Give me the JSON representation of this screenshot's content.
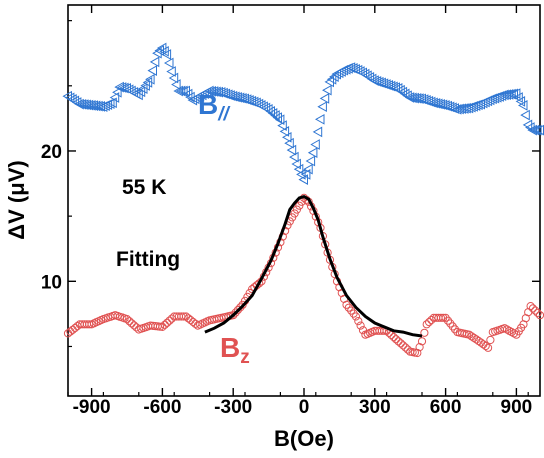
{
  "chart_data": {
    "type": "scatter",
    "xlabel": "B(Oe)",
    "ylabel": "ΔV (μV)",
    "xlim": [
      -1000,
      1000
    ],
    "ylim": [
      1.2,
      31.2
    ],
    "x_ticks": [
      -900,
      -600,
      -300,
      0,
      300,
      600,
      900
    ],
    "y_ticks": [
      10,
      20
    ],
    "grid": false,
    "annotations": [
      "55 K",
      "Fitting"
    ],
    "series": [
      {
        "name": "B//",
        "label_main": "B",
        "label_sub": "//",
        "marker": "triangle-left-open",
        "color": "#2f76d2",
        "x": [
          -1000,
          -950,
          -900,
          -850,
          -810,
          -780,
          -750,
          -700,
          -650,
          -620,
          -600,
          -580,
          -560,
          -530,
          -500,
          -470,
          -440,
          -400,
          -350,
          -300,
          -250,
          -200,
          -150,
          -100,
          -60,
          -30,
          0,
          20,
          50,
          80,
          110,
          140,
          170,
          200,
          230,
          260,
          300,
          350,
          400,
          450,
          500,
          550,
          600,
          650,
          700,
          750,
          800,
          850,
          900,
          930,
          950,
          970,
          1000
        ],
        "y": [
          24.2,
          23.6,
          23.5,
          23.4,
          23.7,
          24.9,
          24.8,
          24.3,
          25.5,
          27.5,
          27.9,
          27.4,
          26.1,
          24.6,
          24.6,
          23.9,
          24.2,
          24.6,
          24.5,
          24.2,
          24.0,
          23.7,
          23.2,
          22.4,
          20.6,
          19.0,
          17.8,
          18.6,
          20.5,
          23.4,
          25.3,
          25.9,
          26.2,
          26.4,
          26.2,
          25.9,
          25.4,
          25.1,
          24.8,
          24.1,
          24.0,
          23.7,
          23.5,
          23.2,
          23.3,
          23.6,
          24.0,
          24.3,
          24.4,
          23.5,
          22.0,
          21.6,
          21.6
        ]
      },
      {
        "name": "Bz",
        "label_main": "B",
        "label_sub": "z",
        "marker": "circle-open",
        "color": "#e05252",
        "x": [
          -1000,
          -950,
          -900,
          -850,
          -800,
          -750,
          -700,
          -650,
          -600,
          -550,
          -500,
          -450,
          -400,
          -350,
          -300,
          -260,
          -220,
          -180,
          -140,
          -100,
          -70,
          -40,
          -20,
          0,
          20,
          40,
          70,
          100,
          140,
          180,
          220,
          260,
          300,
          350,
          400,
          450,
          480,
          500,
          520,
          550,
          600,
          650,
          700,
          750,
          780,
          800,
          850,
          900,
          930,
          960,
          1000
        ],
        "y": [
          6.0,
          6.7,
          6.7,
          7.1,
          7.4,
          7.1,
          6.3,
          6.6,
          6.5,
          7.3,
          7.3,
          6.6,
          7.0,
          7.2,
          7.4,
          8.2,
          9.4,
          10.0,
          11.4,
          13.0,
          14.3,
          15.2,
          15.8,
          16.4,
          16.1,
          15.4,
          14.1,
          12.2,
          10.0,
          8.2,
          7.3,
          5.9,
          6.2,
          6.2,
          5.4,
          4.6,
          4.5,
          5.4,
          6.7,
          7.2,
          7.2,
          6.1,
          5.9,
          5.3,
          4.9,
          6.1,
          6.4,
          5.9,
          6.7,
          8.1,
          7.4
        ]
      },
      {
        "name": "Fitting",
        "marker": "line",
        "color": "#000000",
        "x": [
          -420,
          -380,
          -340,
          -300,
          -260,
          -220,
          -180,
          -140,
          -110,
          -80,
          -60,
          -40,
          -20,
          0,
          20,
          40,
          60,
          80,
          110,
          140,
          180,
          220,
          260,
          300,
          340,
          380,
          420,
          460,
          500
        ],
        "y": [
          6.1,
          6.4,
          6.8,
          7.4,
          8.1,
          8.9,
          10.2,
          11.6,
          12.9,
          14.4,
          15.5,
          16.0,
          16.4,
          16.5,
          16.3,
          15.6,
          14.7,
          13.4,
          11.7,
          10.3,
          8.9,
          8.0,
          7.3,
          6.8,
          6.5,
          6.2,
          6.1,
          5.9,
          5.8
        ]
      }
    ]
  }
}
